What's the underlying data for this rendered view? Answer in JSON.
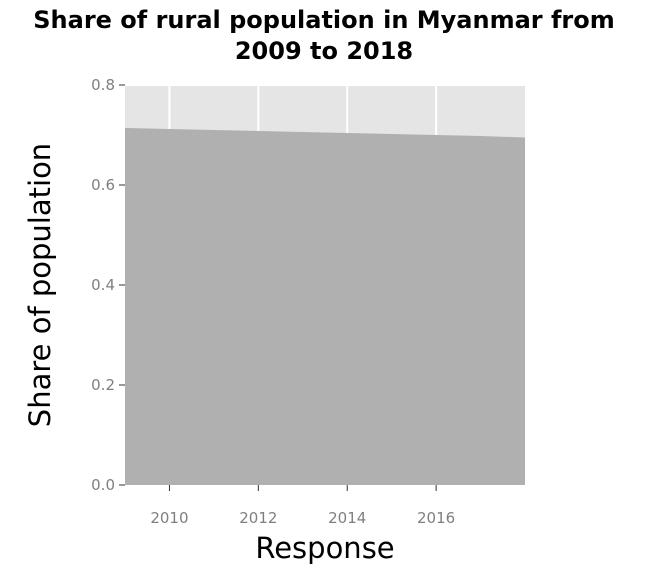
{
  "chart_data": {
    "type": "area",
    "title_lines": [
      "Share of rural population in Myanmar from",
      "2009 to 2018"
    ],
    "xlabel": "Response",
    "ylabel": "Share of population",
    "xlim": [
      2009,
      2018
    ],
    "ylim": [
      0,
      0.8
    ],
    "x_ticks": [
      2010,
      2012,
      2014,
      2016
    ],
    "x_tick_labels": [
      "2010",
      "2012",
      "2014",
      "2016"
    ],
    "y_ticks": [
      0,
      0.2,
      0.4,
      0.6,
      0.8
    ],
    "y_tick_labels": [
      "0.0",
      "0.2",
      "0.4",
      "0.6",
      "0.8"
    ],
    "grid": true,
    "series": [
      {
        "x": [
          2009,
          2010,
          2011,
          2012,
          2013,
          2014,
          2015,
          2016,
          2017,
          2018
        ],
        "values": [
          0.714,
          0.712,
          0.71,
          0.708,
          0.706,
          0.704,
          0.702,
          0.7,
          0.698,
          0.695
        ]
      }
    ],
    "colors": {
      "panel_background": "#e5e5e5",
      "area_fill": "#b0b0b0",
      "grid": "#ffffff",
      "tick_text": "#7f7f7f"
    }
  }
}
